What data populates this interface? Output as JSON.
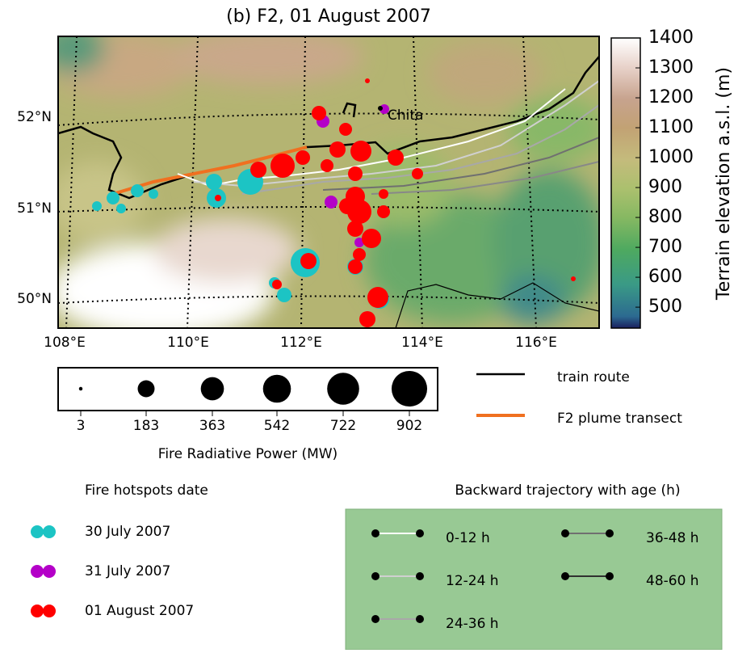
{
  "title": "(b) F2, 01 August 2007",
  "map": {
    "lat_labels": [
      "52°N",
      "51°N",
      "50°N"
    ],
    "lon_labels": [
      "108°E",
      "110°E",
      "112°E",
      "114°E",
      "116°E"
    ],
    "city": "Chita"
  },
  "colorbar": {
    "label": "Terrain elevation a.s.l. (m)",
    "lim": [
      430,
      1400
    ],
    "ticks": [
      500,
      600,
      700,
      800,
      900,
      1000,
      1100,
      1200,
      1300,
      1400
    ]
  },
  "frp_legend": {
    "title": "Fire Radiative Power (MW)",
    "values": [
      3,
      183,
      363,
      542,
      722,
      902
    ]
  },
  "line_legend": [
    {
      "label": "train route",
      "color": "#000000"
    },
    {
      "label": "F2 plume transect",
      "color": "#f07020"
    }
  ],
  "hotspot_legend": {
    "title": "Fire hotspots date",
    "entries": [
      {
        "label": "30 July 2007",
        "color": "#1cc4c4"
      },
      {
        "label": "31 July 2007",
        "color": "#b400c8"
      },
      {
        "label": "01 August 2007",
        "color": "#ff0000"
      }
    ]
  },
  "trajectory_legend": {
    "title": "Backward trajectory with age (h)",
    "entries": [
      {
        "label": "0-12 h",
        "color": "#ffffff"
      },
      {
        "label": "12-24 h",
        "color": "#d0d0d0"
      },
      {
        "label": "24-36 h",
        "color": "#a8a8a8"
      },
      {
        "label": "36-48 h",
        "color": "#707070"
      },
      {
        "label": "48-60 h",
        "color": "#303030"
      }
    ]
  }
}
